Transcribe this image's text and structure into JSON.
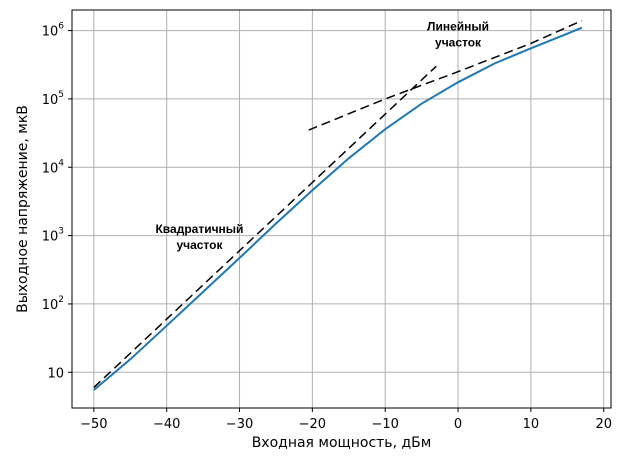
{
  "chart_data": {
    "type": "line",
    "xlabel": "Входная мощность, дБм",
    "ylabel": "Выходное напряжение, мкВ",
    "xlim": [
      -53,
      21
    ],
    "ylim": [
      3.0,
      2000000
    ],
    "yscale": "log",
    "grid": true,
    "x_ticks": [
      {
        "value": -50,
        "label": "−50"
      },
      {
        "value": -40,
        "label": "−40"
      },
      {
        "value": -30,
        "label": "−30"
      },
      {
        "value": -20,
        "label": "−20"
      },
      {
        "value": -10,
        "label": "−10"
      },
      {
        "value": 0,
        "label": "0"
      },
      {
        "value": 10,
        "label": "10"
      },
      {
        "value": 20,
        "label": "20"
      }
    ],
    "y_ticks": [
      {
        "value": 10,
        "base": "10",
        "exp": ""
      },
      {
        "value": 100,
        "base": "10",
        "exp": "2"
      },
      {
        "value": 1000,
        "base": "10",
        "exp": "3"
      },
      {
        "value": 10000,
        "base": "10",
        "exp": "4"
      },
      {
        "value": 100000,
        "base": "10",
        "exp": "5"
      },
      {
        "value": 1000000,
        "base": "10",
        "exp": "6"
      }
    ],
    "series": [
      {
        "name": "",
        "color": "#1f77b4",
        "style": "solid",
        "x": [
          -50,
          -45,
          -40,
          -35,
          -30,
          -25,
          -20,
          -15,
          -10,
          -5,
          0,
          5,
          10,
          15,
          17
        ],
        "y": [
          5.5,
          15.5,
          48,
          150,
          470,
          1500,
          4600,
          13500,
          36000,
          85000,
          175000,
          330000,
          550000,
          900000,
          1100000
        ]
      },
      {
        "name": "",
        "color": "#000000",
        "style": "dashed",
        "x": [
          -50,
          -40,
          -30,
          -20,
          -10,
          -3
        ],
        "y": [
          6,
          60,
          600,
          6000,
          60000,
          300000
        ]
      },
      {
        "name": "",
        "color": "#000000",
        "style": "dashed",
        "x": [
          -20.5,
          -10,
          0,
          10,
          17
        ],
        "y": [
          35000,
          100000,
          250000,
          650000,
          1400000
        ]
      }
    ],
    "annotations": [
      {
        "lines": [
          "Квадратичный",
          "участок"
        ],
        "x": -35.5,
        "y": 1100
      },
      {
        "lines": [
          "Линейный",
          "участок"
        ],
        "x": 0,
        "y": 1000000
      }
    ]
  }
}
